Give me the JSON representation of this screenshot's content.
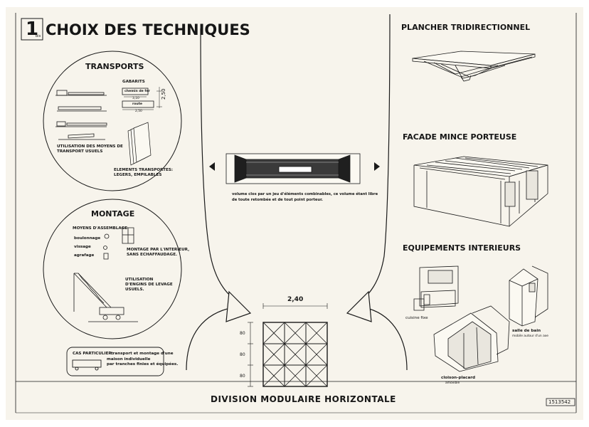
{
  "sheet": {
    "badge_number": "1",
    "badge_suffix": "bis",
    "title": "CHOIX DES TECHNIQUES",
    "footer_title": "DIVISION MODULAIRE HORIZONTALE",
    "stamp": "1513542"
  },
  "transports": {
    "heading": "TRANSPORTS",
    "gabarits_label": "GABARITS",
    "rail_label": "chemin de fer",
    "rail_width": "3,10",
    "road_label": "route",
    "road_width": "2,50",
    "height_dim": "2,50",
    "means_caption_1": "UTILISATION DES MOYENS DE",
    "means_caption_2": "TRANSPORT USUELS",
    "elements_caption_1": "ELEMENTS TRANSPORTES:",
    "elements_caption_2": "LEGERS, EMPILABLES"
  },
  "montage": {
    "heading": "MONTAGE",
    "moyens_label": "MOYENS D'ASSEMBLAGE",
    "item_1": "boulonnage",
    "item_2": "vissage",
    "item_3": "agrafage",
    "interior_caption_1": "MONTAGE PAR L'INTERIEUR,",
    "interior_caption_2": "SANS ECHAFFAUDAGE.",
    "lift_caption_1": "UTILISATION",
    "lift_caption_2": "D'ENGINS DE LEVAGE",
    "lift_caption_3": "USUELS."
  },
  "special_case": {
    "label": "CAS PARTICULIER:",
    "text_1": "transport et montage d'une",
    "text_2": "maison individuelle",
    "text_3": "par tranches finies et équipées."
  },
  "center": {
    "caption_1": "volume clos par un jeu d'éléments combinables, ce volume étant libre",
    "caption_2": "de toute retombée et de tout point porteur.",
    "module_dim": "2,40",
    "side_dims": [
      "80",
      "80",
      "80"
    ]
  },
  "right": {
    "plancher_heading": "PLANCHER TRIDIRECTIONNEL",
    "facade_heading": "FACADE MINCE PORTEUSE",
    "equipements_heading": "EQUIPEMENTS INTERIEURS",
    "cuisine_label": "cuisine fixe",
    "bain_label": "salle de bain",
    "bain_sub": "mobile autour d'un axe",
    "placard_label": "cloison-placard",
    "placard_sub": "amovible"
  }
}
